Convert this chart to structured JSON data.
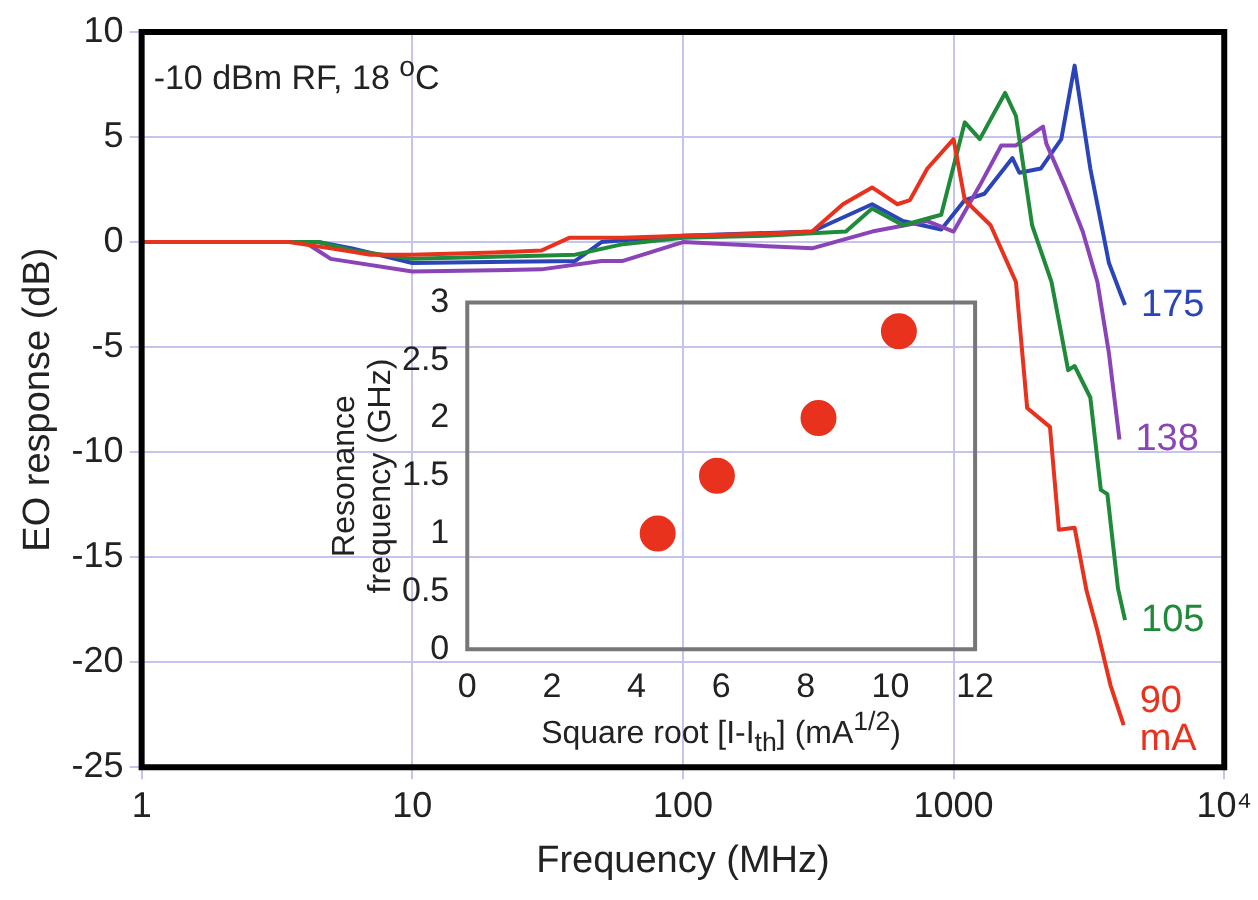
{
  "chart_data": [
    {
      "type": "line",
      "xlabel": "Frequency (MHz)",
      "ylabel": "EO response (dB)",
      "log": "x",
      "xlim": [
        1,
        10000
      ],
      "ylim": [
        -25,
        10
      ],
      "xticks": [
        1,
        10,
        100,
        1000,
        {
          "value": 10000,
          "label": "10⁴"
        }
      ],
      "yticks": [
        -25,
        -20,
        -15,
        -10,
        -5,
        0,
        5,
        10
      ],
      "grid": true,
      "marker": "none",
      "line_style": "solid",
      "annotations": [
        "-10 dBm RF, 18 $^{o}$C",
        "mA"
      ],
      "series": [
        {
          "name": "90",
          "color": "#e8321e",
          "x": [
            1,
            3.5,
            5,
            7,
            10,
            20,
            30,
            38,
            60,
            100,
            200,
            300,
            390,
            500,
            620,
            690,
            800,
            1000,
            1100,
            1370,
            1700,
            1870,
            2270,
            2450,
            2800,
            3100,
            3400,
            3800,
            4250
          ],
          "values": [
            0,
            0,
            -0.3,
            -0.6,
            -0.6,
            -0.5,
            -0.4,
            0.2,
            0.2,
            0.3,
            0.4,
            0.5,
            1.8,
            2.6,
            1.8,
            2.0,
            3.5,
            4.9,
            2.0,
            0.8,
            -1.9,
            -7.9,
            -8.8,
            -13.7,
            -13.6,
            -16.6,
            -18.5,
            -21.1,
            -23.0
          ]
        },
        {
          "name": "105",
          "color": "#1f8a3a",
          "x": [
            1,
            4.5,
            6,
            10,
            20,
            40,
            60,
            100,
            200,
            400,
            500,
            650,
            900,
            1100,
            1250,
            1550,
            1700,
            1950,
            2300,
            2650,
            2800,
            3200,
            3500,
            3700,
            4050,
            4300
          ],
          "values": [
            0,
            0,
            -0.4,
            -0.8,
            -0.7,
            -0.6,
            -0.1,
            0.2,
            0.3,
            0.5,
            1.6,
            0.8,
            1.3,
            5.7,
            4.9,
            7.1,
            6.0,
            0.8,
            -1.9,
            -6.1,
            -5.9,
            -7.4,
            -11.8,
            -12,
            -16.5,
            -18
          ]
        },
        {
          "name": "138",
          "color": "#8a44b8",
          "x": [
            1,
            4,
            5,
            10,
            30,
            50,
            60,
            100,
            300,
            500,
            800,
            1000,
            1250,
            1500,
            1700,
            2140,
            2200,
            2570,
            3000,
            3400,
            3750,
            4100
          ],
          "values": [
            0,
            0,
            -0.8,
            -1.4,
            -1.3,
            -0.9,
            -0.9,
            0,
            -0.3,
            0.5,
            1.0,
            0.5,
            2.7,
            4.6,
            4.6,
            5.5,
            4.7,
            2.7,
            0.5,
            -1.9,
            -5.3,
            -9.4
          ]
        },
        {
          "name": "175",
          "color": "#2b45b8",
          "x": [
            1,
            4.5,
            6,
            10,
            40,
            50,
            100,
            300,
            500,
            650,
            900,
            1100,
            1300,
            1650,
            1750,
            2100,
            2500,
            2800,
            3200,
            3750,
            4150,
            4300
          ],
          "values": [
            0,
            0,
            -0.3,
            -1.0,
            -0.9,
            0,
            0.3,
            0.5,
            1.8,
            1.0,
            0.6,
            2.0,
            2.3,
            4.0,
            3.3,
            3.5,
            4.9,
            8.4,
            3.5,
            -1.0,
            -2.5,
            -3.0
          ]
        }
      ]
    },
    {
      "type": "scatter",
      "xlabel": "Square root [I-I$_{th}$] (mA$^{1/2}$)",
      "ylabel": "Resonance frequency (GHz)",
      "xlim": [
        0,
        12
      ],
      "ylim": [
        0,
        3
      ],
      "xticks": [
        0,
        2,
        4,
        6,
        8,
        10,
        12
      ],
      "yticks": [
        0,
        0.5,
        1,
        1.5,
        2,
        2.5,
        3
      ],
      "marker": "circle",
      "series": [
        {
          "color": "#e8321e",
          "x": [
            4.5,
            5.9,
            8.3,
            10.2
          ],
          "values": [
            1.0,
            1.5,
            2.0,
            2.75
          ]
        }
      ]
    }
  ]
}
